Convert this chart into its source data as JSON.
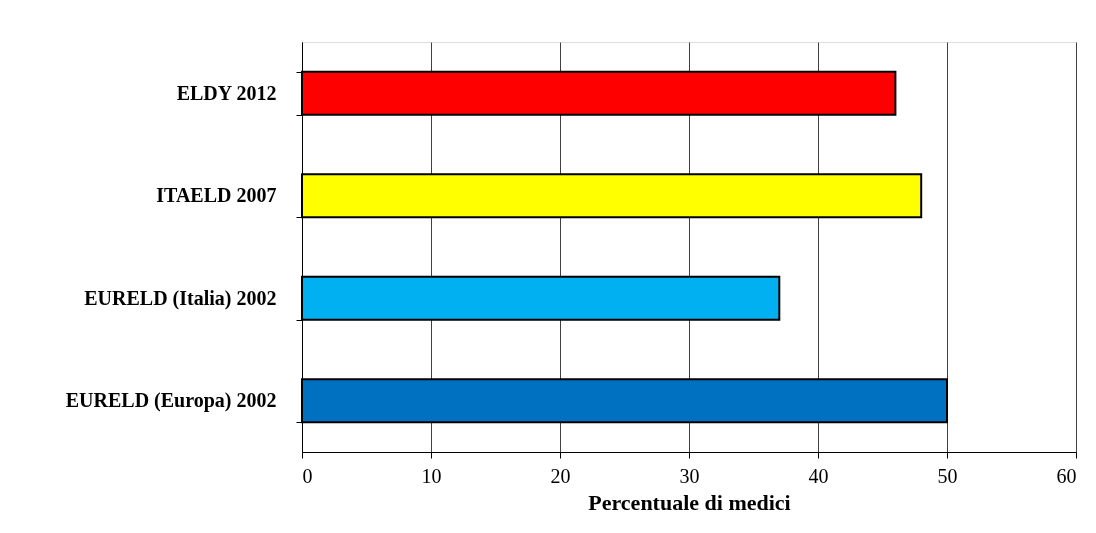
{
  "chart_data": {
    "type": "bar",
    "orientation": "horizontal",
    "xlabel": "Percentuale di medici",
    "categories": [
      "ELDY 2012",
      "ITAELD 2007",
      "EURELD (Italia) 2002",
      "EURELD (Europa) 2002"
    ],
    "values": [
      46,
      48,
      37,
      50
    ],
    "colors": [
      "#ff0000",
      "#ffff00",
      "#00b0f0",
      "#0070c0"
    ],
    "xlim": [
      0,
      60
    ],
    "xticks": [
      0,
      10,
      20,
      30,
      40,
      50,
      60
    ],
    "grid": "x"
  }
}
